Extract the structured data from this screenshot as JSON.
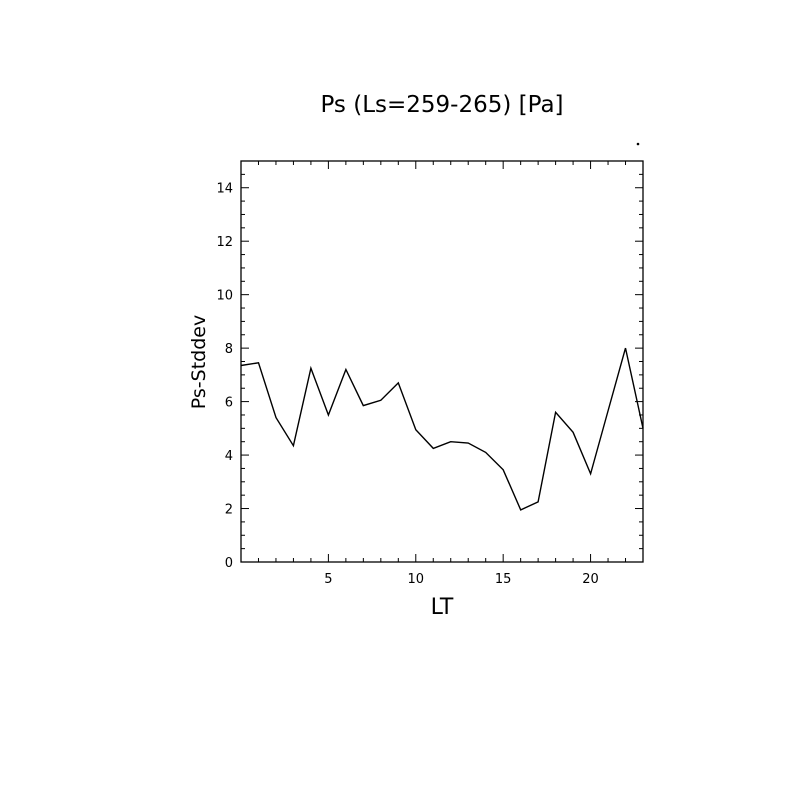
{
  "chart_data": {
    "type": "line",
    "title": "Ps (Ls=259-265) [Pa]",
    "xlabel": "LT",
    "ylabel": "Ps-Stddev",
    "xlim": [
      0,
      23
    ],
    "ylim": [
      0,
      15
    ],
    "x_ticks": [
      5,
      10,
      15,
      20
    ],
    "x_tick_labels": [
      "5",
      "10",
      "15",
      "20"
    ],
    "y_ticks": [
      0,
      2,
      4,
      6,
      8,
      10,
      12,
      14
    ],
    "y_tick_labels": [
      "0",
      "2",
      "4",
      "6",
      "8",
      "10",
      "12",
      "14"
    ],
    "grid": false,
    "series": [
      {
        "x": [
          0,
          1,
          2,
          3,
          4,
          5,
          6,
          7,
          8,
          9,
          10,
          11,
          12,
          13,
          14,
          15,
          16,
          17,
          18,
          19,
          20,
          21,
          22,
          23
        ],
        "values": [
          7.35,
          7.45,
          5.4,
          4.35,
          7.25,
          5.5,
          7.2,
          5.85,
          6.05,
          6.7,
          4.95,
          4.25,
          4.5,
          4.45,
          4.1,
          3.45,
          1.95,
          2.25,
          5.6,
          4.85,
          3.3,
          5.65,
          8.0,
          5.0
        ]
      }
    ]
  }
}
